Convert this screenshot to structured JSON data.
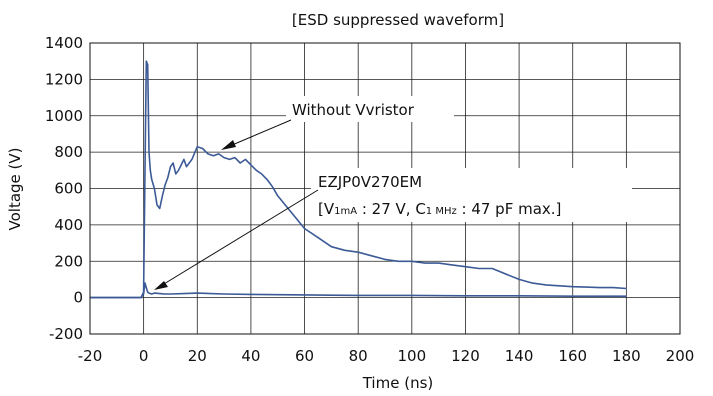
{
  "chart_data": {
    "type": "line",
    "title": "[ESD suppressed waveform]",
    "xlabel": "Time (ns)",
    "ylabel": "Voltage (V)",
    "xlim": [
      -20,
      200
    ],
    "ylim": [
      -200,
      1400
    ],
    "x_ticks": [
      -20,
      0,
      20,
      40,
      60,
      80,
      100,
      120,
      140,
      160,
      180,
      200
    ],
    "x_tick_labels": [
      "-20",
      "0",
      "20",
      "40",
      "60",
      "80",
      "100",
      "120",
      "140",
      "160",
      "180",
      "200"
    ],
    "y_ticks": [
      -200,
      0,
      200,
      400,
      600,
      800,
      1000,
      1200,
      1400
    ],
    "y_tick_labels": [
      "-200",
      "0",
      "200",
      "400",
      "600",
      "800",
      "1000",
      "1200",
      "1400"
    ],
    "grid": true,
    "series": [
      {
        "name": "Without Vvristor",
        "color": "#3c5a96",
        "x": [
          -20,
          -10,
          -1,
          0,
          0.5,
          1,
          1.5,
          2,
          2.5,
          3,
          4,
          5,
          6,
          7,
          8,
          9,
          10,
          11,
          12,
          13,
          14,
          15,
          16,
          18,
          20,
          22,
          24,
          26,
          28,
          30,
          32,
          34,
          36,
          38,
          40,
          42,
          44,
          46,
          48,
          50,
          55,
          60,
          65,
          70,
          75,
          80,
          85,
          90,
          95,
          100,
          105,
          110,
          115,
          120,
          125,
          130,
          135,
          140,
          145,
          150,
          155,
          160,
          165,
          170,
          175,
          180
        ],
        "values": [
          0,
          0,
          0,
          30,
          700,
          1300,
          1280,
          800,
          700,
          650,
          600,
          510,
          490,
          560,
          620,
          660,
          720,
          740,
          680,
          700,
          730,
          760,
          720,
          760,
          830,
          820,
          790,
          780,
          790,
          770,
          760,
          770,
          740,
          760,
          730,
          700,
          680,
          650,
          610,
          560,
          470,
          380,
          330,
          280,
          260,
          250,
          230,
          210,
          200,
          200,
          190,
          190,
          180,
          170,
          160,
          160,
          130,
          100,
          80,
          70,
          65,
          60,
          58,
          55,
          55,
          50
        ]
      },
      {
        "name": "EZJP0V270EM",
        "color": "#3c5a96",
        "x": [
          -20,
          -10,
          -1,
          0,
          0.5,
          1,
          1.5,
          2,
          3,
          4,
          6,
          8,
          10,
          15,
          20,
          25,
          30,
          40,
          60,
          80,
          100,
          120,
          140,
          160,
          180
        ],
        "values": [
          0,
          0,
          0,
          20,
          80,
          55,
          30,
          25,
          20,
          25,
          22,
          20,
          20,
          22,
          25,
          22,
          20,
          18,
          15,
          12,
          12,
          10,
          10,
          8,
          8
        ]
      }
    ],
    "annotations": [
      {
        "text": "Without Vvristor"
      },
      {
        "text": "EZJP0V270EM"
      }
    ],
    "spec_line": {
      "open": "[V",
      "sub1": "1mA",
      "mid": " : 27 V, C",
      "sub2": "1 MHz",
      "end": " : 47 pF max.]"
    }
  }
}
